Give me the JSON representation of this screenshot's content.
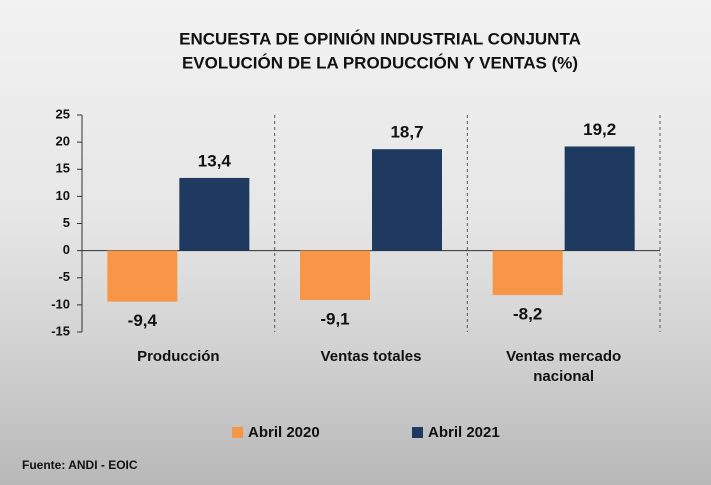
{
  "chart_data": {
    "type": "bar",
    "title": "ENCUESTA DE OPINIÓN INDUSTRIAL CONJUNTA",
    "subtitle": "EVOLUCIÓN DE LA PRODUCCIÓN Y VENTAS (%)",
    "categories": [
      "Producción",
      "Ventas totales",
      "Ventas mercado nacional"
    ],
    "series": [
      {
        "name": "Abril 2020",
        "color": "#f79646",
        "values": [
          -9.4,
          -9.1,
          -8.2
        ],
        "value_labels": [
          "-9,4",
          "-9,1",
          "-8,2"
        ]
      },
      {
        "name": "Abril 2021",
        "color": "#1f3a60",
        "values": [
          13.4,
          18.7,
          19.2
        ],
        "value_labels": [
          "13,4",
          "18,7",
          "19,2"
        ]
      }
    ],
    "ylim": [
      -15,
      25
    ],
    "yticks": [
      -15,
      -10,
      -5,
      0,
      5,
      10,
      15,
      20,
      25
    ],
    "grid": false,
    "legend": "bottom",
    "source": "Fuente: ANDI - EOIC"
  }
}
